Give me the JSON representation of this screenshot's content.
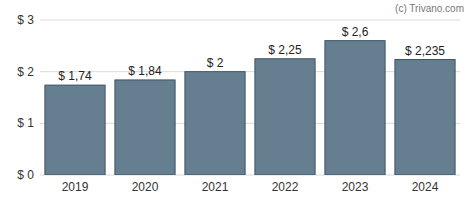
{
  "chart_data": {
    "type": "bar",
    "annotation": "(c) Trivano.com",
    "categories": [
      "2019",
      "2020",
      "2021",
      "2022",
      "2023",
      "2024"
    ],
    "values": [
      1.74,
      1.84,
      2,
      2.25,
      2.6,
      2.235
    ],
    "value_labels": [
      "$ 1,74",
      "$ 1,84",
      "$ 2",
      "$ 2,25",
      "$ 2,6",
      "$ 2,235"
    ],
    "data_labels": true,
    "color": "#657f91",
    "ylim": [
      0,
      3
    ],
    "yticks": [
      {
        "value": 0,
        "label": "$ 0"
      },
      {
        "value": 1,
        "label": "$ 1"
      },
      {
        "value": 2,
        "label": "$ 2"
      },
      {
        "value": 3,
        "label": "$ 3"
      }
    ],
    "grid": true
  }
}
